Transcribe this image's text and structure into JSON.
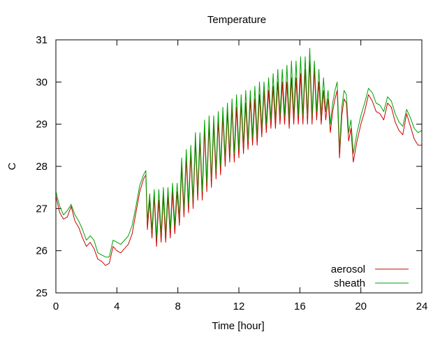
{
  "chart_data": {
    "type": "line",
    "title": "Temperature",
    "xlabel": "Time [hour]",
    "ylabel": "C",
    "xlim": [
      0,
      24
    ],
    "ylim": [
      25,
      31
    ],
    "x_ticks": [
      0,
      4,
      8,
      12,
      16,
      20,
      24
    ],
    "y_ticks": [
      25,
      26,
      27,
      28,
      29,
      30,
      31
    ],
    "grid": false,
    "legend_position": "bottom-right",
    "series": [
      {
        "name": "aerosol",
        "color": "#cc0000",
        "x": [
          0,
          0.25,
          0.5,
          0.75,
          1.0,
          1.25,
          1.5,
          1.75,
          2.0,
          2.25,
          2.5,
          2.75,
          3.0,
          3.25,
          3.5,
          3.75,
          4.0,
          4.25,
          4.5,
          4.75,
          5.0,
          5.25,
          5.5,
          5.75,
          5.9,
          6.0,
          6.15,
          6.3,
          6.45,
          6.6,
          6.75,
          6.9,
          7.05,
          7.2,
          7.35,
          7.5,
          7.65,
          7.8,
          7.95,
          8.1,
          8.25,
          8.4,
          8.55,
          8.7,
          8.85,
          9.0,
          9.15,
          9.3,
          9.45,
          9.6,
          9.75,
          9.9,
          10.05,
          10.2,
          10.35,
          10.5,
          10.65,
          10.8,
          10.95,
          11.1,
          11.25,
          11.4,
          11.55,
          11.7,
          11.85,
          12.0,
          12.15,
          12.3,
          12.45,
          12.6,
          12.75,
          12.9,
          13.05,
          13.2,
          13.35,
          13.5,
          13.65,
          13.8,
          13.95,
          14.1,
          14.25,
          14.4,
          14.55,
          14.7,
          14.85,
          15.0,
          15.15,
          15.3,
          15.45,
          15.6,
          15.75,
          15.9,
          16.05,
          16.2,
          16.35,
          16.5,
          16.65,
          16.8,
          16.95,
          17.1,
          17.25,
          17.4,
          17.55,
          17.7,
          17.85,
          18.0,
          18.15,
          18.3,
          18.45,
          18.6,
          18.75,
          18.9,
          19.05,
          19.2,
          19.35,
          19.5,
          19.75,
          20.0,
          20.25,
          20.5,
          20.75,
          21.0,
          21.25,
          21.5,
          21.75,
          22.0,
          22.25,
          22.5,
          22.75,
          23.0,
          23.25,
          23.5,
          23.75,
          24.0
        ],
        "y": [
          27.3,
          26.9,
          26.75,
          26.8,
          27.05,
          26.7,
          26.55,
          26.3,
          26.1,
          26.2,
          26.05,
          25.8,
          25.75,
          25.65,
          25.7,
          26.1,
          26.0,
          25.95,
          26.05,
          26.15,
          26.4,
          26.9,
          27.4,
          27.7,
          27.8,
          26.5,
          27.2,
          26.3,
          27.3,
          26.1,
          27.2,
          26.2,
          27.3,
          26.2,
          27.3,
          26.3,
          27.4,
          26.4,
          27.4,
          26.6,
          28.0,
          26.8,
          28.2,
          26.9,
          28.3,
          27.0,
          28.6,
          27.2,
          28.6,
          27.2,
          28.9,
          27.4,
          29.0,
          27.5,
          29.0,
          27.7,
          29.1,
          27.8,
          29.2,
          28.0,
          29.3,
          28.1,
          29.4,
          28.1,
          29.4,
          28.2,
          29.5,
          28.3,
          29.5,
          28.4,
          29.6,
          28.5,
          29.6,
          28.5,
          29.7,
          28.7,
          29.8,
          28.8,
          29.8,
          28.9,
          29.9,
          28.9,
          30.0,
          29.0,
          30.0,
          29.0,
          30.0,
          28.9,
          30.1,
          29.0,
          30.1,
          29.0,
          30.2,
          29.0,
          30.3,
          29.0,
          30.5,
          29.0,
          30.3,
          29.1,
          30.0,
          29.0,
          29.8,
          29.1,
          29.6,
          28.8,
          29.3,
          29.6,
          29.8,
          28.2,
          29.2,
          29.6,
          29.5,
          28.6,
          28.9,
          28.1,
          28.6,
          29.0,
          29.3,
          29.7,
          29.55,
          29.3,
          29.25,
          29.1,
          29.5,
          29.4,
          29.05,
          28.85,
          28.75,
          29.25,
          28.95,
          28.65,
          28.5,
          28.5
        ]
      },
      {
        "name": "sheath",
        "color": "#00a000",
        "x": [
          0,
          0.25,
          0.5,
          0.75,
          1.0,
          1.25,
          1.5,
          1.75,
          2.0,
          2.25,
          2.5,
          2.75,
          3.0,
          3.25,
          3.5,
          3.75,
          4.0,
          4.25,
          4.5,
          4.75,
          5.0,
          5.25,
          5.5,
          5.75,
          5.9,
          6.0,
          6.15,
          6.3,
          6.45,
          6.6,
          6.75,
          6.9,
          7.05,
          7.2,
          7.35,
          7.5,
          7.65,
          7.8,
          7.95,
          8.1,
          8.25,
          8.4,
          8.55,
          8.7,
          8.85,
          9.0,
          9.15,
          9.3,
          9.45,
          9.6,
          9.75,
          9.9,
          10.05,
          10.2,
          10.35,
          10.5,
          10.65,
          10.8,
          10.95,
          11.1,
          11.25,
          11.4,
          11.55,
          11.7,
          11.85,
          12.0,
          12.15,
          12.3,
          12.45,
          12.6,
          12.75,
          12.9,
          13.05,
          13.2,
          13.35,
          13.5,
          13.65,
          13.8,
          13.95,
          14.1,
          14.25,
          14.4,
          14.55,
          14.7,
          14.85,
          15.0,
          15.15,
          15.3,
          15.45,
          15.6,
          15.75,
          15.9,
          16.05,
          16.2,
          16.35,
          16.5,
          16.65,
          16.8,
          16.95,
          17.1,
          17.25,
          17.4,
          17.55,
          17.7,
          17.85,
          18.0,
          18.15,
          18.3,
          18.45,
          18.6,
          18.75,
          18.9,
          19.05,
          19.2,
          19.35,
          19.5,
          19.75,
          20.0,
          20.25,
          20.5,
          20.75,
          21.0,
          21.25,
          21.5,
          21.75,
          22.0,
          22.25,
          22.5,
          22.75,
          23.0,
          23.25,
          23.5,
          23.75,
          24.0
        ],
        "y": [
          27.4,
          27.05,
          26.85,
          26.95,
          27.1,
          26.85,
          26.7,
          26.5,
          26.25,
          26.35,
          26.25,
          25.95,
          25.9,
          25.85,
          25.85,
          26.25,
          26.2,
          26.15,
          26.25,
          26.35,
          26.6,
          27.05,
          27.55,
          27.8,
          27.9,
          26.7,
          27.35,
          26.5,
          27.45,
          26.3,
          27.45,
          26.4,
          27.5,
          26.4,
          27.5,
          26.5,
          27.6,
          26.6,
          27.6,
          26.8,
          28.2,
          27.0,
          28.4,
          27.1,
          28.5,
          27.2,
          28.8,
          27.4,
          28.8,
          27.4,
          29.1,
          27.6,
          29.2,
          27.7,
          29.2,
          27.9,
          29.3,
          28.0,
          29.4,
          28.2,
          29.5,
          28.3,
          29.6,
          28.3,
          29.7,
          28.4,
          29.7,
          28.5,
          29.8,
          28.6,
          29.8,
          28.7,
          29.9,
          28.7,
          30.0,
          28.9,
          30.0,
          29.0,
          30.1,
          29.1,
          30.2,
          29.1,
          30.3,
          29.2,
          30.3,
          29.2,
          30.4,
          29.1,
          30.5,
          29.2,
          30.5,
          29.2,
          30.6,
          29.2,
          30.6,
          29.2,
          30.8,
          29.2,
          30.5,
          29.3,
          30.3,
          29.2,
          30.1,
          29.3,
          29.8,
          29.0,
          29.5,
          29.8,
          30.0,
          28.4,
          29.4,
          29.8,
          29.7,
          28.8,
          29.1,
          28.3,
          28.8,
          29.2,
          29.5,
          29.85,
          29.75,
          29.5,
          29.45,
          29.3,
          29.65,
          29.55,
          29.25,
          29.05,
          28.95,
          29.35,
          29.15,
          28.9,
          28.8,
          28.85
        ]
      }
    ]
  }
}
